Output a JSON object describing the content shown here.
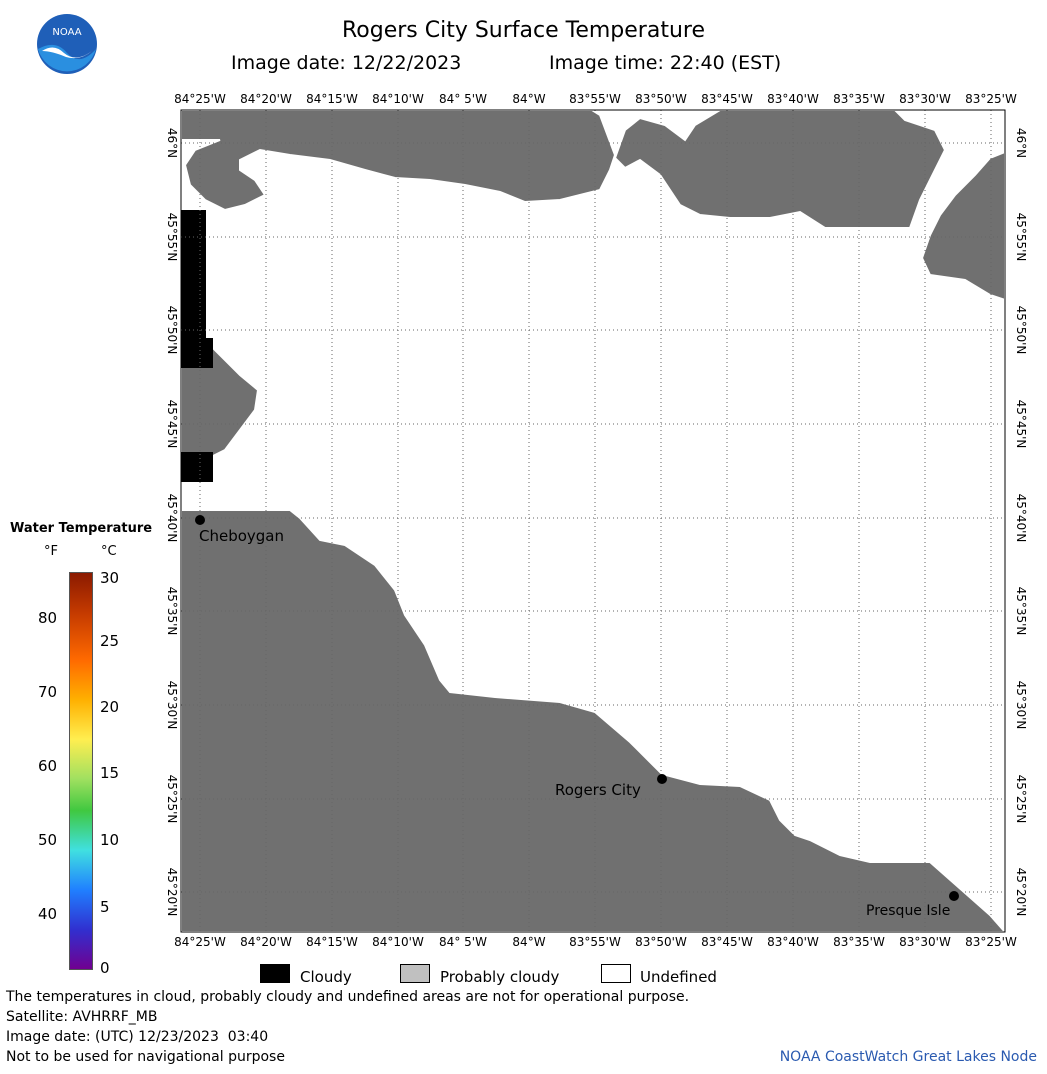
{
  "header": {
    "title": "Rogers City Surface Temperature",
    "image_date": "Image date: 12/22/2023",
    "image_time": "Image time: 22:40 (EST)",
    "logo_text": "NOAA"
  },
  "map": {
    "lon_labels": [
      "84°25'W",
      "84°20'W",
      "84°15'W",
      "84°10'W",
      "84° 5'W",
      "84°W",
      "83°55'W",
      "83°50'W",
      "83°45'W",
      "83°40'W",
      "83°35'W",
      "83°30'W",
      "83°25'W"
    ],
    "lat_labels": [
      "46°N",
      "45°55'N",
      "45°50'N",
      "45°45'N",
      "45°40'N",
      "45°35'N",
      "45°30'N",
      "45°25'N",
      "45°20'N"
    ],
    "cities": {
      "cheboygan": "Cheboygan",
      "rogers_city": "Rogers City",
      "presque_isle": "Presque Isle"
    },
    "colors": {
      "land": "#707070",
      "cloudy": "#000000",
      "probably_cloudy": "#c0c0c0",
      "undefined": "#ffffff"
    }
  },
  "legend": {
    "title": "Water Temperature",
    "unit_f": "°F",
    "unit_c": "°C",
    "f_ticks": [
      "80",
      "70",
      "60",
      "50",
      "40"
    ],
    "c_ticks": [
      "30",
      "25",
      "20",
      "15",
      "10",
      "5",
      "0"
    ]
  },
  "key": {
    "cloudy": "Cloudy",
    "probably_cloudy": "Probably cloudy",
    "undefined": "Undefined"
  },
  "footer": {
    "note": "The temperatures in cloud, probably cloudy and undefined areas are not for operational purpose.",
    "satellite": "Satellite: AVHRRF_MB",
    "utc_date": "Image date: (UTC) 12/23/2023  03:40",
    "disclaimer": "Not to be used for navigational purpose",
    "credit": "NOAA CoastWatch Great Lakes Node"
  }
}
